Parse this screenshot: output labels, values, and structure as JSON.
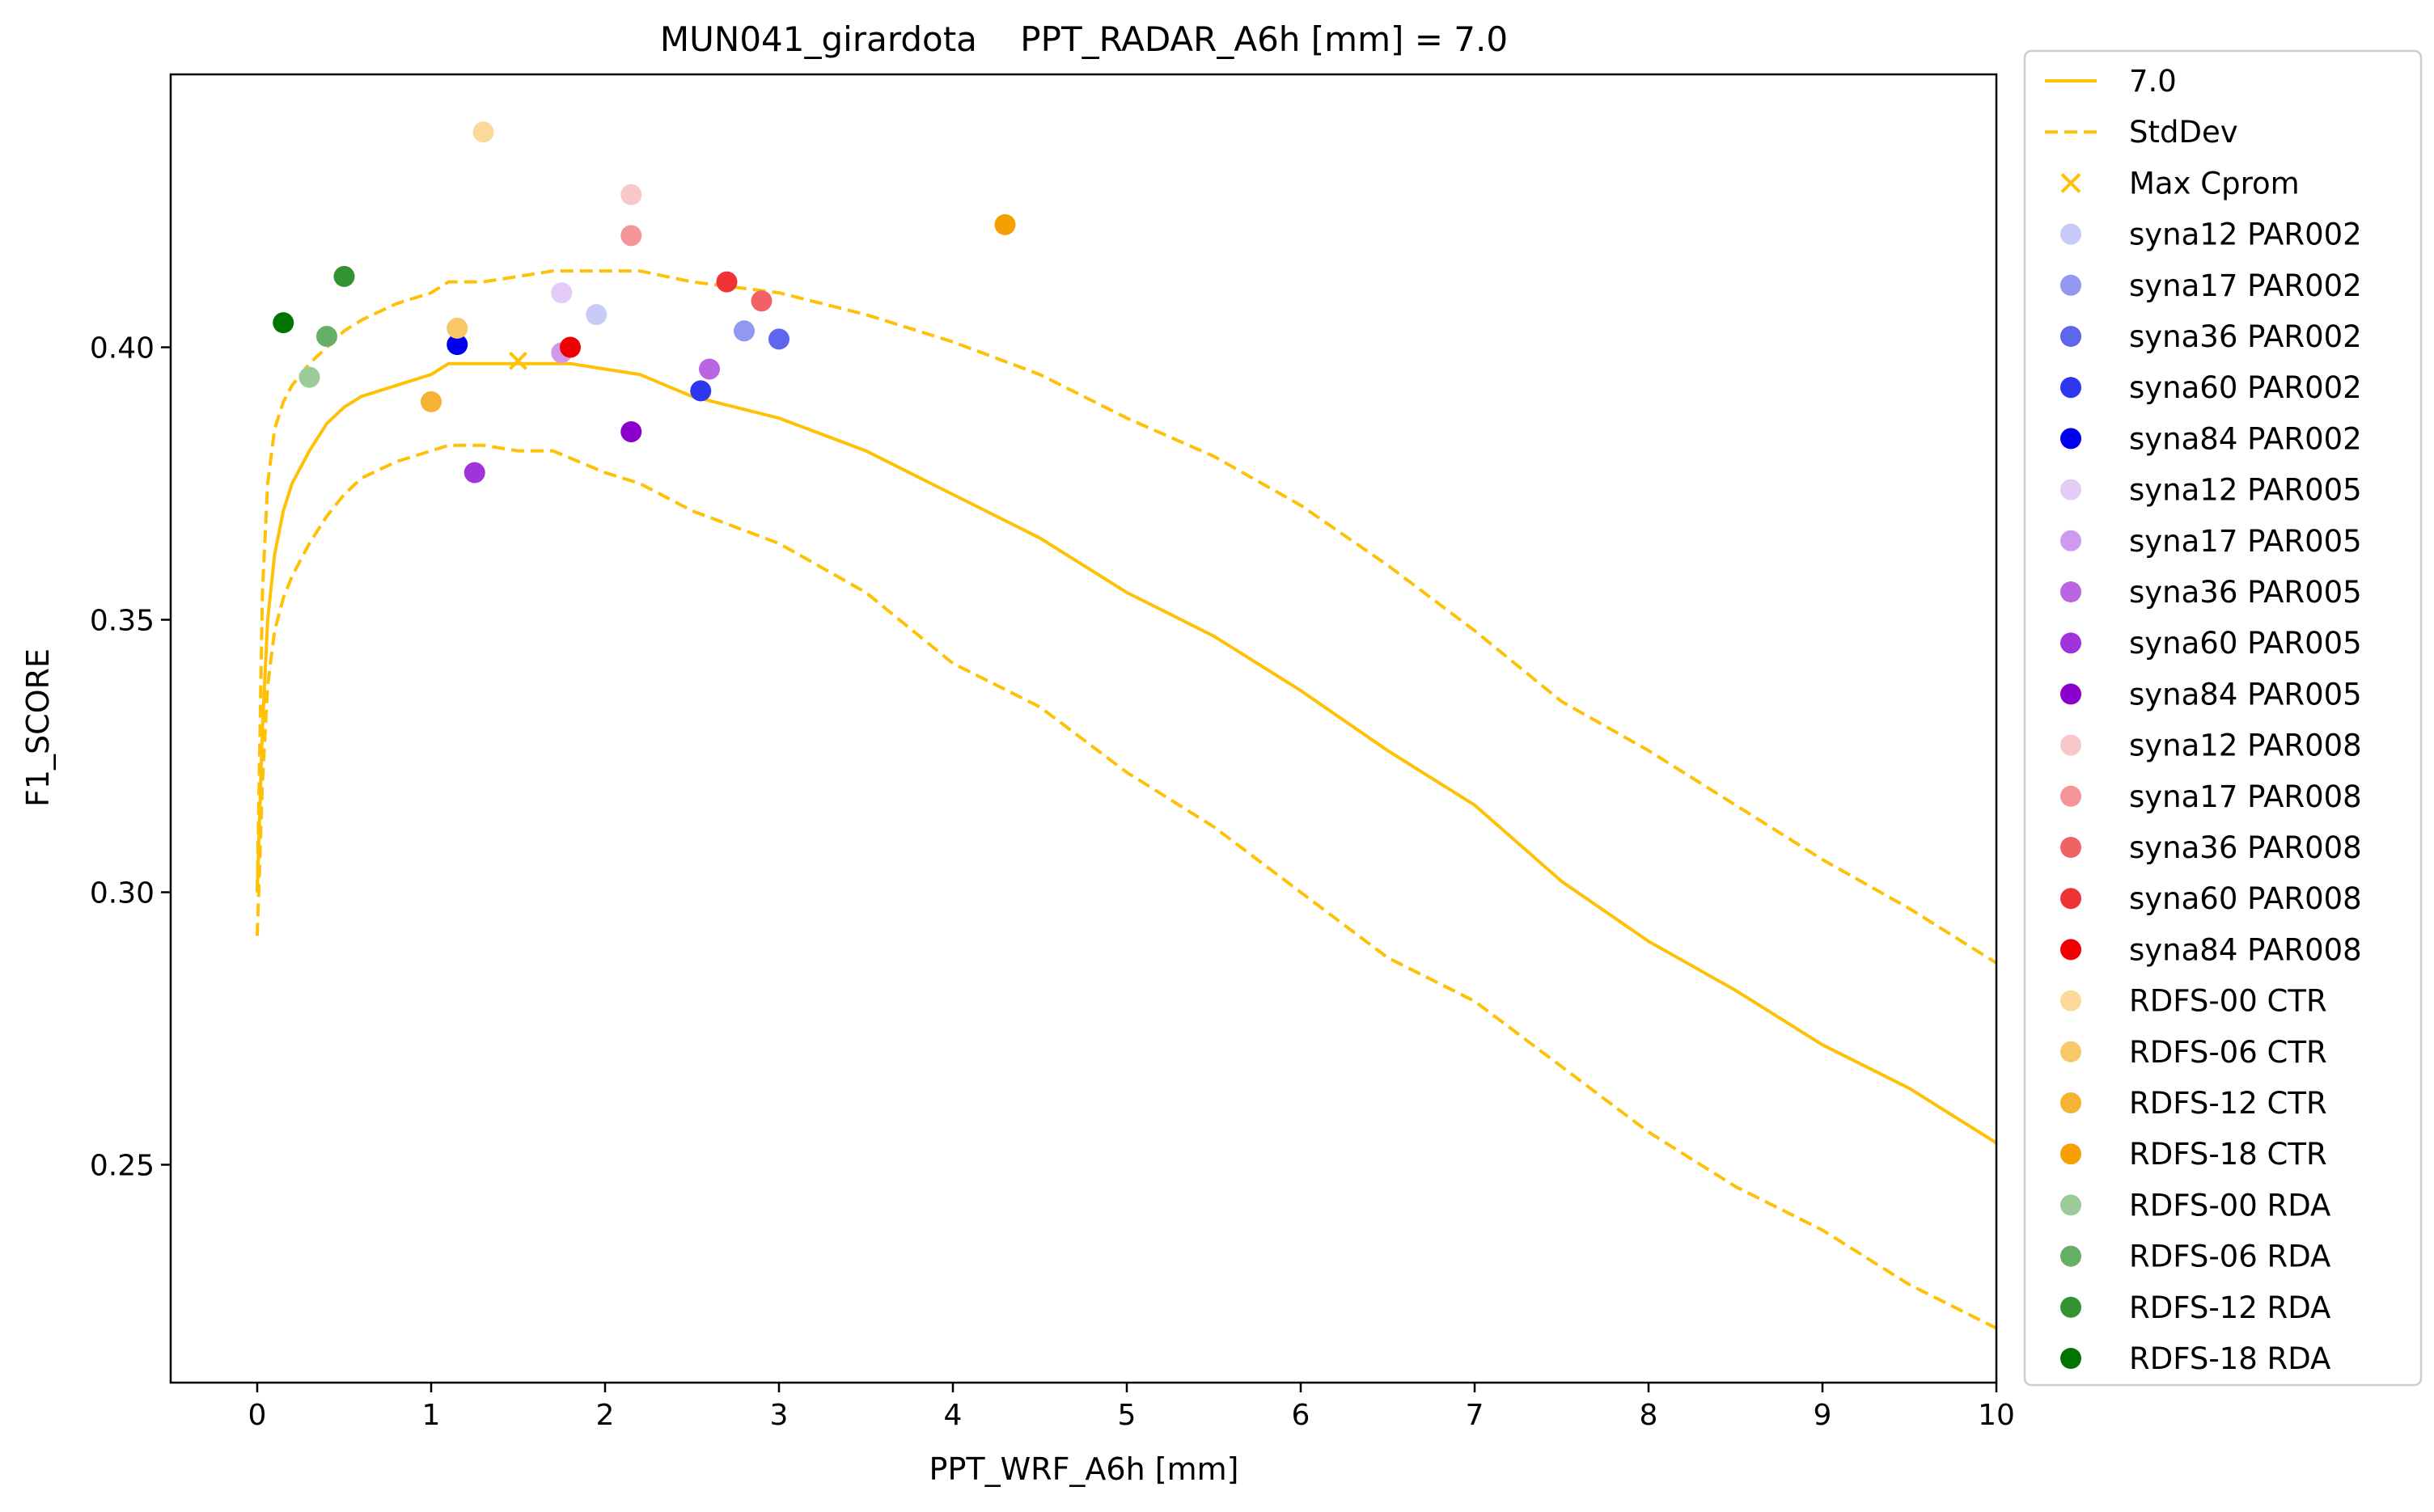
{
  "chart_data": {
    "type": "scatter",
    "title": "MUN041_girardota    PPT_RADAR_A6h [mm] = 7.0",
    "xlabel": "PPT_WRF_A6h [mm]",
    "ylabel": "F1_SCORE",
    "xlim": [
      -0.5,
      10
    ],
    "ylim": [
      0.21,
      0.45
    ],
    "xticks": [
      "0",
      "1",
      "2",
      "3",
      "4",
      "5",
      "6",
      "7",
      "8",
      "9",
      "10"
    ],
    "yticks": [
      "0.25",
      "0.30",
      "0.35",
      "0.40"
    ],
    "grid": false,
    "legend_position": "outside-right",
    "curve": {
      "name": "7.0",
      "color": "#FFC107",
      "x": [
        0,
        0.03,
        0.06,
        0.1,
        0.15,
        0.2,
        0.3,
        0.4,
        0.5,
        0.6,
        0.8,
        1.0,
        1.1,
        1.3,
        1.5,
        1.7,
        1.8,
        2.0,
        2.2,
        2.5,
        3.0,
        3.5,
        4.0,
        4.5,
        5.0,
        5.5,
        6.0,
        6.5,
        7.0,
        7.5,
        8.0,
        8.5,
        9.0,
        9.5,
        10.0
      ],
      "y": [
        0.3,
        0.33,
        0.35,
        0.362,
        0.37,
        0.375,
        0.381,
        0.386,
        0.389,
        0.391,
        0.393,
        0.395,
        0.397,
        0.397,
        0.397,
        0.397,
        0.397,
        0.396,
        0.395,
        0.391,
        0.387,
        0.381,
        0.373,
        0.365,
        0.355,
        0.347,
        0.337,
        0.326,
        0.316,
        0.302,
        0.291,
        0.282,
        0.272,
        0.264,
        0.254
      ]
    },
    "stddev_upper": {
      "name": "StdDev",
      "color": "#FFC107",
      "x": [
        0,
        0.03,
        0.06,
        0.1,
        0.15,
        0.2,
        0.3,
        0.4,
        0.5,
        0.6,
        0.8,
        1.0,
        1.1,
        1.3,
        1.5,
        1.7,
        2.0,
        2.2,
        2.5,
        3.0,
        3.5,
        4.0,
        4.5,
        5.0,
        5.5,
        6.0,
        6.5,
        7.0,
        7.5,
        8.0,
        8.5,
        9.0,
        9.5,
        10.0
      ],
      "y": [
        0.3,
        0.355,
        0.375,
        0.385,
        0.39,
        0.393,
        0.397,
        0.4,
        0.403,
        0.405,
        0.408,
        0.41,
        0.412,
        0.412,
        0.413,
        0.414,
        0.414,
        0.414,
        0.412,
        0.41,
        0.406,
        0.401,
        0.395,
        0.387,
        0.38,
        0.371,
        0.36,
        0.348,
        0.335,
        0.326,
        0.316,
        0.306,
        0.297,
        0.287
      ]
    },
    "stddev_lower": {
      "name": "StdDev",
      "color": "#FFC107",
      "x": [
        0,
        0.03,
        0.06,
        0.1,
        0.15,
        0.2,
        0.3,
        0.4,
        0.5,
        0.6,
        0.8,
        1.0,
        1.1,
        1.3,
        1.5,
        1.7,
        2.0,
        2.2,
        2.5,
        3.0,
        3.5,
        4.0,
        4.5,
        5.0,
        5.5,
        6.0,
        6.5,
        7.0,
        7.5,
        8.0,
        8.5,
        9.0,
        9.5,
        10.0
      ],
      "y": [
        0.292,
        0.32,
        0.338,
        0.348,
        0.354,
        0.358,
        0.364,
        0.369,
        0.373,
        0.376,
        0.379,
        0.381,
        0.382,
        0.382,
        0.381,
        0.381,
        0.377,
        0.375,
        0.37,
        0.364,
        0.355,
        0.342,
        0.334,
        0.322,
        0.312,
        0.3,
        0.288,
        0.28,
        0.268,
        0.256,
        0.246,
        0.238,
        0.228,
        0.22
      ]
    },
    "max_cprom": {
      "name": "Max Cprom",
      "color": "#FFC107",
      "x": 1.5,
      "y": 0.3975
    },
    "series": [
      {
        "name": "syna12 PAR002",
        "color": "#C8CBF8",
        "x": 1.95,
        "y": 0.406
      },
      {
        "name": "syna17 PAR002",
        "color": "#9198F2",
        "x": 2.8,
        "y": 0.403
      },
      {
        "name": "syna36 PAR002",
        "color": "#5F66EE",
        "x": 3.0,
        "y": 0.4015
      },
      {
        "name": "syna60 PAR002",
        "color": "#2E36EE",
        "x": 2.55,
        "y": 0.392
      },
      {
        "name": "syna84 PAR002",
        "color": "#0000EE",
        "x": 1.15,
        "y": 0.4005
      },
      {
        "name": "syna12 PAR005",
        "color": "#E4CCF6",
        "x": 1.75,
        "y": 0.41
      },
      {
        "name": "syna17 PAR005",
        "color": "#D09AEC",
        "x": 1.75,
        "y": 0.399
      },
      {
        "name": "syna36 PAR005",
        "color": "#BA66E2",
        "x": 2.6,
        "y": 0.396
      },
      {
        "name": "syna60 PAR005",
        "color": "#A133DC",
        "x": 1.25,
        "y": 0.377
      },
      {
        "name": "syna84 PAR005",
        "color": "#8B00CC",
        "x": 2.15,
        "y": 0.3845
      },
      {
        "name": "syna12 PAR008",
        "color": "#FAC7C9",
        "x": 2.15,
        "y": 0.428
      },
      {
        "name": "syna17 PAR008",
        "color": "#F59599",
        "x": 2.15,
        "y": 0.4205
      },
      {
        "name": "syna36 PAR008",
        "color": "#F06266",
        "x": 2.9,
        "y": 0.4085
      },
      {
        "name": "syna60 PAR008",
        "color": "#EE3235",
        "x": 2.7,
        "y": 0.412
      },
      {
        "name": "syna84 PAR008",
        "color": "#EE0000",
        "x": 1.8,
        "y": 0.4
      },
      {
        "name": "RDFS-00 CTR",
        "color": "#FBD99A",
        "x": 1.3,
        "y": 0.4395
      },
      {
        "name": "RDFS-06 CTR",
        "color": "#F8C766",
        "x": 1.15,
        "y": 0.4035
      },
      {
        "name": "RDFS-12 CTR",
        "color": "#F6B233",
        "x": 1.0,
        "y": 0.39
      },
      {
        "name": "RDFS-18 CTR",
        "color": "#F59F00",
        "x": 4.3,
        "y": 0.4225
      },
      {
        "name": "RDFS-00 RDA",
        "color": "#9CCB9A",
        "x": 0.3,
        "y": 0.3945
      },
      {
        "name": "RDFS-06 RDA",
        "color": "#66AF66",
        "x": 0.4,
        "y": 0.402
      },
      {
        "name": "RDFS-12 RDA",
        "color": "#339333",
        "x": 0.5,
        "y": 0.413
      },
      {
        "name": "RDFS-18 RDA",
        "color": "#007500",
        "x": 0.15,
        "y": 0.4045
      }
    ]
  }
}
